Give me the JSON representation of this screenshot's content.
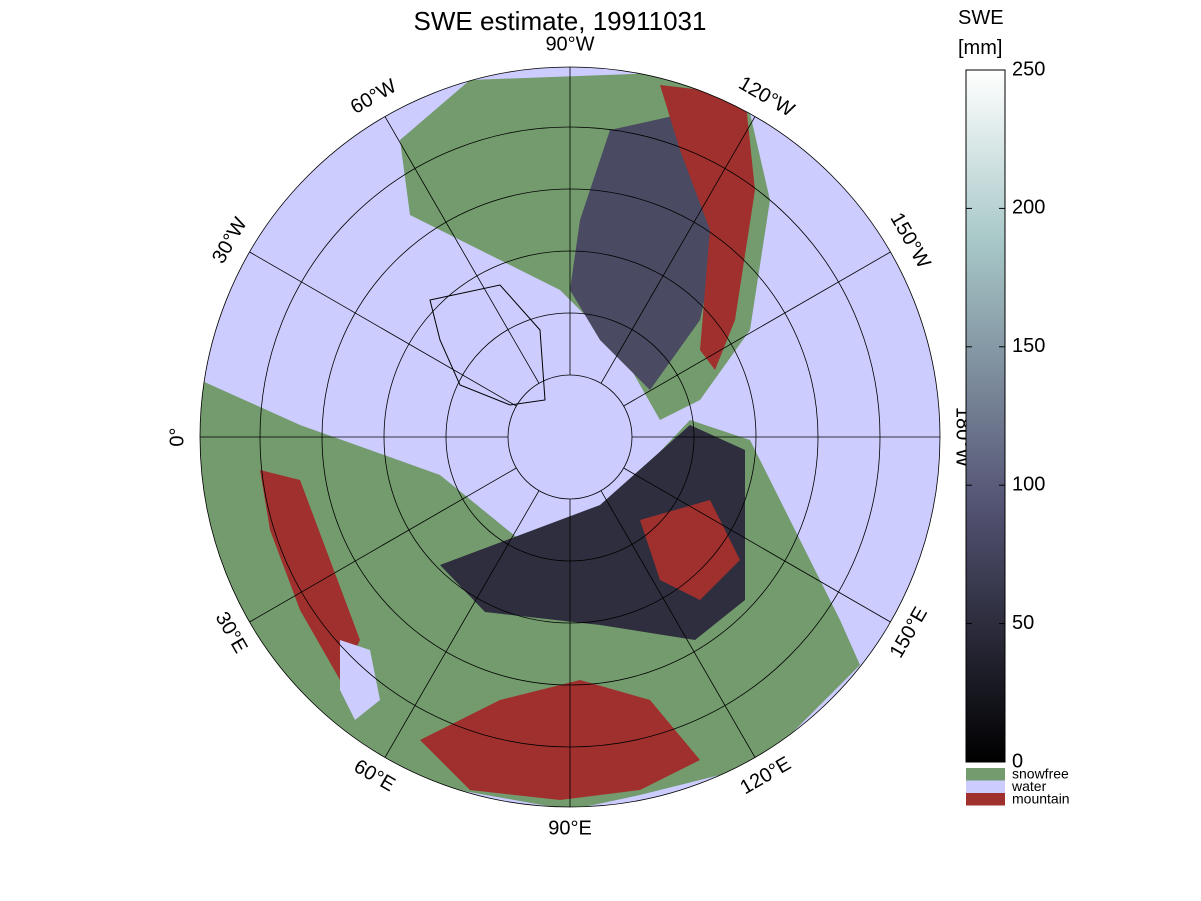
{
  "title": "SWE estimate, 19911031",
  "longitude_labels": [
    "0°",
    "30°E",
    "60°E",
    "90°E",
    "120°E",
    "150°E",
    "180°W",
    "150°W",
    "120°W",
    "90°W",
    "60°W",
    "30°W"
  ],
  "colorbar": {
    "title": [
      "SWE",
      "[mm]"
    ],
    "ylim": [
      0,
      250
    ],
    "yticks": [
      0,
      50,
      100,
      150,
      200,
      250
    ]
  },
  "legend": [
    {
      "name": "snowfree",
      "color": "#739b6d"
    },
    {
      "name": "water",
      "color": "#ccccff"
    },
    {
      "name": "mountain",
      "color": "#a0302d"
    }
  ]
}
